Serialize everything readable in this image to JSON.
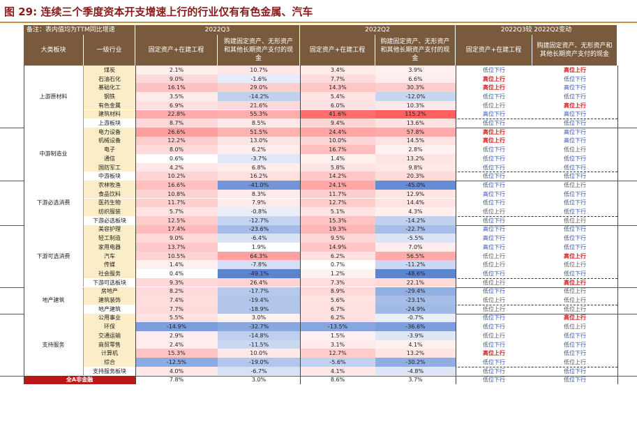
{
  "title": "图 29: 连续三个季度资本开支增速上行的行业仅有有色金属、汽车",
  "colors": {
    "header_bg": "#7a5a3c",
    "industry_bg": "#fbedc7",
    "up_color": "#d01818",
    "down_color": "#2d4fb8",
    "total_bg": "#b81818"
  },
  "header": {
    "note": "备注：表内值均为TTM同比增速",
    "q3": "2022Q3",
    "q2": "2022Q2",
    "change": "2022Q3较 2022Q2变动",
    "col_cat": "大类板块",
    "col_ind": "一级行业",
    "col_fixed": "固定资产+在建工程",
    "col_purchase": "购建固定资产、无形资产和其他长期资产支付的现金"
  },
  "groups": [
    {
      "name": "上游原材料",
      "rows": [
        {
          "ind": "煤炭",
          "q3a": "2.1%",
          "q3b": "10.7%",
          "q2a": "3.4%",
          "q2b": "3.9%",
          "ca": "低位下行",
          "cb": "高位上行"
        },
        {
          "ind": "石油石化",
          "q3a": "9.0%",
          "q3b": "-1.6%",
          "q2a": "7.7%",
          "q2b": "6.6%",
          "ca": "高位上行",
          "cb": "低位下行"
        },
        {
          "ind": "基础化工",
          "q3a": "16.1%",
          "q3b": "29.0%",
          "q2a": "14.3%",
          "q2b": "30.3%",
          "ca": "高位上行",
          "cb": "高位下行"
        },
        {
          "ind": "钢铁",
          "q3a": "3.5%",
          "q3b": "-14.2%",
          "q2a": "5.4%",
          "q2b": "-12.0%",
          "ca": "低位下行",
          "cb": "低位下行"
        },
        {
          "ind": "有色金属",
          "q3a": "6.9%",
          "q3b": "21.6%",
          "q2a": "6.0%",
          "q2b": "10.3%",
          "ca": "低位上行",
          "cb": "高位上行"
        },
        {
          "ind": "建筑材料",
          "q3a": "22.8%",
          "q3b": "55.3%",
          "q2a": "41.6%",
          "q2b": "115.2%",
          "ca": "高位下行",
          "cb": "高位下行"
        },
        {
          "ind": "上游板块",
          "q3a": "8.7%",
          "q3b": "8.5%",
          "q2a": "9.4%",
          "q2b": "13.6%",
          "ca": "低位下行",
          "cb": "低位下行",
          "sum": true
        }
      ]
    },
    {
      "name": "中游制造业",
      "rows": [
        {
          "ind": "电力设备",
          "q3a": "26.6%",
          "q3b": "51.5%",
          "q2a": "24.4%",
          "q2b": "57.8%",
          "ca": "高位上行",
          "cb": "高位下行"
        },
        {
          "ind": "机械设备",
          "q3a": "12.2%",
          "q3b": "13.0%",
          "q2a": "10.0%",
          "q2b": "14.5%",
          "ca": "高位上行",
          "cb": "高位下行"
        },
        {
          "ind": "电子",
          "q3a": "8.0%",
          "q3b": "6.2%",
          "q2a": "16.7%",
          "q2b": "2.8%",
          "ca": "低位下行",
          "cb": "低位上行"
        },
        {
          "ind": "通信",
          "q3a": "0.6%",
          "q3b": "-3.7%",
          "q2a": "1.4%",
          "q2b": "13.2%",
          "ca": "低位下行",
          "cb": "低位下行"
        },
        {
          "ind": "国防军工",
          "q3a": "4.2%",
          "q3b": "6.8%",
          "q2a": "5.8%",
          "q2b": "9.8%",
          "ca": "低位下行",
          "cb": "低位下行"
        },
        {
          "ind": "中游板块",
          "q3a": "10.2%",
          "q3b": "16.2%",
          "q2a": "14.2%",
          "q2b": "20.3%",
          "ca": "低位下行",
          "cb": "低位下行",
          "sum": true
        }
      ]
    },
    {
      "name": "下游必选消费",
      "rows": [
        {
          "ind": "农林牧渔",
          "q3a": "16.6%",
          "q3b": "-41.0%",
          "q2a": "24.1%",
          "q2b": "-45.0%",
          "ca": "低位下行",
          "cb": "低位上行"
        },
        {
          "ind": "食品饮料",
          "q3a": "10.8%",
          "q3b": "8.3%",
          "q2a": "11.7%",
          "q2b": "12.9%",
          "ca": "高位下行",
          "cb": "低位下行"
        },
        {
          "ind": "医药生物",
          "q3a": "11.7%",
          "q3b": "7.9%",
          "q2a": "12.7%",
          "q2b": "14.4%",
          "ca": "低位下行",
          "cb": "低位下行"
        },
        {
          "ind": "纺织服装",
          "q3a": "5.7%",
          "q3b": "-0.8%",
          "q2a": "5.1%",
          "q2b": "4.3%",
          "ca": "低位上行",
          "cb": "低位下行"
        },
        {
          "ind": "下游必选板块",
          "q3a": "12.5%",
          "q3b": "-12.7%",
          "q2a": "15.3%",
          "q2b": "-14.2%",
          "ca": "低位下行",
          "cb": "低位上行",
          "sum": true
        }
      ]
    },
    {
      "name": "下游可选消费",
      "rows": [
        {
          "ind": "美容护理",
          "q3a": "17.4%",
          "q3b": "-23.6%",
          "q2a": "19.3%",
          "q2b": "-22.7%",
          "ca": "高位下行",
          "cb": "低位下行"
        },
        {
          "ind": "轻工制造",
          "q3a": "9.0%",
          "q3b": "-6.4%",
          "q2a": "9.5%",
          "q2b": "-5.5%",
          "ca": "高位下行",
          "cb": "低位下行"
        },
        {
          "ind": "家用电器",
          "q3a": "13.7%",
          "q3b": "1.9%",
          "q2a": "14.9%",
          "q2b": "7.0%",
          "ca": "高位下行",
          "cb": "低位下行"
        },
        {
          "ind": "汽车",
          "q3a": "10.5%",
          "q3b": "64.3%",
          "q2a": "6.2%",
          "q2b": "56.5%",
          "ca": "低位上行",
          "cb": "高位上行"
        },
        {
          "ind": "传媒",
          "q3a": "1.4%",
          "q3b": "-7.8%",
          "q2a": "0.7%",
          "q2b": "-11.2%",
          "ca": "低位上行",
          "cb": "低位上行"
        },
        {
          "ind": "社会服务",
          "q3a": "0.4%",
          "q3b": "-49.1%",
          "q2a": "1.2%",
          "q2b": "-48.6%",
          "ca": "低位下行",
          "cb": "低位下行"
        },
        {
          "ind": "下游可选板块",
          "q3a": "9.3%",
          "q3b": "26.4%",
          "q2a": "7.3%",
          "q2b": "22.1%",
          "ca": "低位上行",
          "cb": "高位上行",
          "sum": true
        }
      ]
    },
    {
      "name": "地产建筑",
      "rows": [
        {
          "ind": "房地产",
          "q3a": "8.2%",
          "q3b": "-17.7%",
          "q2a": "8.9%",
          "q2b": "-29.4%",
          "ca": "低位下行",
          "cb": "低位上行"
        },
        {
          "ind": "建筑装饰",
          "q3a": "7.4%",
          "q3b": "-19.4%",
          "q2a": "5.6%",
          "q2b": "-23.1%",
          "ca": "低位上行",
          "cb": "低位上行"
        },
        {
          "ind": "地产建筑",
          "q3a": "7.7%",
          "q3b": "-18.9%",
          "q2a": "6.7%",
          "q2b": "-24.9%",
          "ca": "低位上行",
          "cb": "低位上行",
          "sum": true
        }
      ]
    },
    {
      "name": "支持服务",
      "rows": [
        {
          "ind": "公用事业",
          "q3a": "5.5%",
          "q3b": "3.0%",
          "q2a": "6.2%",
          "q2b": "-0.7%",
          "ca": "低位下行",
          "cb": "高位上行"
        },
        {
          "ind": "环保",
          "q3a": "-14.9%",
          "q3b": "-32.7%",
          "q2a": "-13.5%",
          "q2b": "-36.6%",
          "ca": "低位下行",
          "cb": "低位上行"
        },
        {
          "ind": "交通运输",
          "q3a": "2.9%",
          "q3b": "-14.8%",
          "q2a": "1.5%",
          "q2b": "-3.9%",
          "ca": "低位上行",
          "cb": "低位下行"
        },
        {
          "ind": "商贸零售",
          "q3a": "2.4%",
          "q3b": "-11.5%",
          "q2a": "3.1%",
          "q2b": "4.1%",
          "ca": "低位下行",
          "cb": "低位下行"
        },
        {
          "ind": "计算机",
          "q3a": "15.3%",
          "q3b": "10.0%",
          "q2a": "12.7%",
          "q2b": "13.2%",
          "ca": "高位上行",
          "cb": "低位下行"
        },
        {
          "ind": "综合",
          "q3a": "-12.5%",
          "q3b": "-19.0%",
          "q2a": "-5.6%",
          "q2b": "-30.2%",
          "ca": "低位下行",
          "cb": "低位上行"
        },
        {
          "ind": "支持服务板块",
          "q3a": "4.0%",
          "q3b": "-6.7%",
          "q2a": "4.1%",
          "q2b": "-4.8%",
          "ca": "低位下行",
          "cb": "低位下行",
          "sum": true
        }
      ]
    }
  ],
  "total": {
    "label": "全A非金融",
    "q3a": "7.8%",
    "q3b": "3.0%",
    "q2a": "8.6%",
    "q2b": "3.7%",
    "ca": "低位下行",
    "cb": "低位下行"
  }
}
